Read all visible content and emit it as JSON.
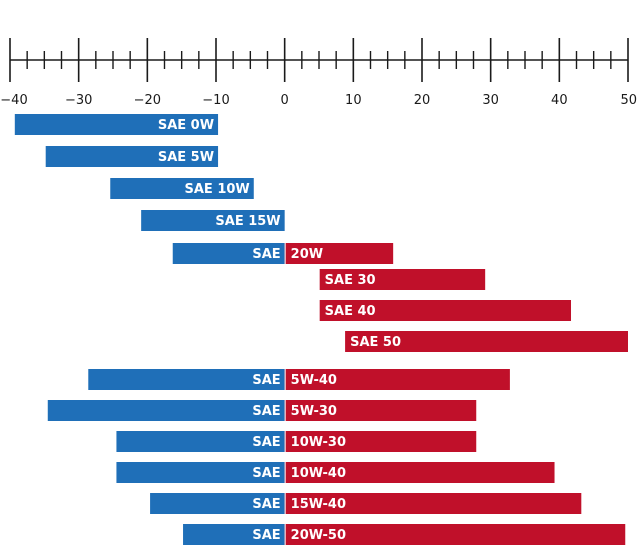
{
  "chart_data": {
    "type": "bar",
    "orientation": "horizontal-range",
    "xlim": [
      -40,
      50
    ],
    "ticks": [
      -40,
      -30,
      -20,
      -10,
      0,
      10,
      20,
      30,
      40,
      50
    ],
    "minor_tick_step": 2.5,
    "title": "",
    "xlabel": "",
    "ylabel": "",
    "colors": {
      "cold": "#1f6fb8",
      "hot": "#c0102a",
      "axis": "#1a1a1a"
    },
    "split_at": 0,
    "bars": [
      {
        "label": "SAE 0W",
        "prefix": "",
        "suffix": "",
        "start": -39.3,
        "end": -9.7,
        "group": 1
      },
      {
        "label": "SAE 5W",
        "prefix": "",
        "suffix": "",
        "start": -34.8,
        "end": -9.7,
        "group": 1
      },
      {
        "label": "SAE 10W",
        "prefix": "",
        "suffix": "",
        "start": -25.4,
        "end": -4.5,
        "group": 1
      },
      {
        "label": "SAE 15W",
        "prefix": "",
        "suffix": "",
        "start": -20.9,
        "end": 0.0,
        "group": 1
      },
      {
        "label": "SAE 20W",
        "prefix": "SAE",
        "suffix": "20W",
        "start": -16.3,
        "end": 15.8,
        "group": 1
      },
      {
        "label": "SAE 30",
        "prefix": "",
        "suffix": "",
        "start": 5.1,
        "end": 29.2,
        "group": 1
      },
      {
        "label": "SAE 40",
        "prefix": "",
        "suffix": "",
        "start": 5.1,
        "end": 41.7,
        "group": 1
      },
      {
        "label": "SAE 50",
        "prefix": "",
        "suffix": "",
        "start": 8.8,
        "end": 50.0,
        "group": 1
      },
      {
        "label": "SAE 5W-40",
        "prefix": "SAE",
        "suffix": "5W-40",
        "start": -28.6,
        "end": 32.8,
        "group": 2
      },
      {
        "label": "SAE 5W-30",
        "prefix": "SAE",
        "suffix": "5W-30",
        "start": -34.5,
        "end": 27.9,
        "group": 2
      },
      {
        "label": "SAE 10W-30",
        "prefix": "SAE",
        "suffix": "10W-30",
        "start": -24.5,
        "end": 27.9,
        "group": 2
      },
      {
        "label": "SAE 10W-40",
        "prefix": "SAE",
        "suffix": "10W-40",
        "start": -24.5,
        "end": 39.3,
        "group": 2
      },
      {
        "label": "SAE 15W-40",
        "prefix": "SAE",
        "suffix": "15W-40",
        "start": -19.6,
        "end": 43.2,
        "group": 2
      },
      {
        "label": "SAE 20W-50",
        "prefix": "SAE",
        "suffix": "20W-50",
        "start": -14.8,
        "end": 49.6,
        "group": 2
      }
    ]
  }
}
